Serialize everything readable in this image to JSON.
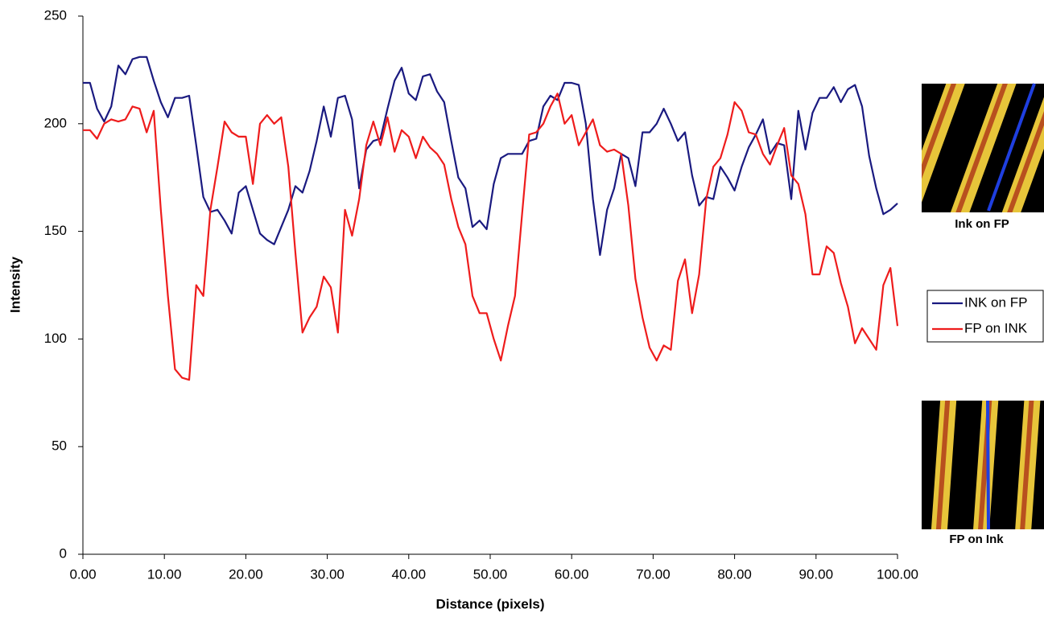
{
  "chart_data": {
    "type": "line",
    "x_label": "Distance (pixels)",
    "y_label": "Intensity",
    "x": [
      0,
      0.87,
      1.74,
      2.61,
      3.48,
      4.35,
      5.22,
      6.09,
      6.96,
      7.83,
      8.7,
      9.57,
      10.43,
      11.3,
      12.17,
      13.04,
      13.91,
      14.78,
      15.65,
      16.52,
      17.39,
      18.26,
      19.13,
      20.0,
      20.87,
      21.74,
      22.61,
      23.48,
      24.35,
      25.22,
      26.09,
      26.96,
      27.83,
      28.7,
      29.57,
      30.43,
      31.3,
      32.17,
      33.04,
      33.91,
      34.78,
      35.65,
      36.52,
      37.39,
      38.26,
      39.13,
      40.0,
      40.87,
      41.74,
      42.61,
      43.48,
      44.35,
      45.22,
      46.09,
      46.96,
      47.83,
      48.7,
      49.57,
      50.43,
      51.3,
      52.17,
      53.04,
      53.91,
      54.78,
      55.65,
      56.52,
      57.39,
      58.26,
      59.13,
      60.0,
      60.87,
      61.74,
      62.61,
      63.48,
      64.35,
      65.22,
      66.09,
      66.96,
      67.83,
      68.7,
      69.57,
      70.43,
      71.3,
      72.17,
      73.04,
      73.91,
      74.78,
      75.65,
      76.52,
      77.39,
      78.26,
      79.13,
      80.0,
      80.87,
      81.74,
      82.61,
      83.48,
      84.35,
      85.22,
      86.09,
      86.96,
      87.83,
      88.7,
      89.57,
      90.43,
      91.3,
      92.17,
      93.04,
      93.91,
      94.78,
      95.65,
      96.52,
      97.39,
      98.26,
      99.13,
      100.0
    ],
    "series": [
      {
        "name": "INK on FP",
        "color": "#1a1a80",
        "values": [
          219,
          219,
          207,
          201,
          208,
          227,
          223,
          230,
          231,
          231,
          220,
          210,
          203,
          212,
          212,
          213,
          190,
          166,
          159,
          160,
          155,
          149,
          168,
          171,
          160,
          149,
          146,
          144,
          152,
          160,
          171,
          168,
          178,
          192,
          208,
          194,
          212,
          213,
          202,
          170,
          188,
          192,
          193,
          207,
          220,
          226,
          214,
          211,
          222,
          223,
          215,
          210,
          192,
          175,
          170,
          152,
          155,
          151,
          172,
          184,
          186,
          186,
          186,
          192,
          193,
          208,
          213,
          211,
          219,
          219,
          218,
          200,
          165,
          139,
          160,
          170,
          186,
          184,
          171,
          196,
          196,
          200,
          207,
          200,
          192,
          196,
          176,
          162,
          166,
          165,
          180,
          175,
          169,
          180,
          189,
          195,
          202,
          186,
          191,
          190,
          165,
          206,
          188,
          205,
          212,
          212,
          217,
          210,
          216,
          218,
          208,
          185,
          170,
          158,
          160,
          163
        ]
      },
      {
        "name": "FP on INK",
        "color": "#ee1c1c",
        "values": [
          197,
          197,
          193,
          200,
          202,
          201,
          202,
          208,
          207,
          196,
          206,
          160,
          120,
          86,
          82,
          81,
          125,
          120,
          160,
          180,
          201,
          196,
          194,
          194,
          172,
          200,
          204,
          200,
          203,
          180,
          140,
          103,
          110,
          115,
          129,
          124,
          103,
          160,
          148,
          165,
          190,
          201,
          190,
          203,
          187,
          197,
          194,
          184,
          194,
          189,
          186,
          181,
          165,
          152,
          144,
          120,
          112,
          112,
          100,
          90,
          106,
          120,
          158,
          195,
          196,
          200,
          208,
          214,
          200,
          204,
          190,
          196,
          202,
          190,
          187,
          188,
          186,
          162,
          128,
          110,
          96,
          90,
          97,
          95,
          127,
          137,
          112,
          130,
          165,
          180,
          184,
          195,
          210,
          206,
          196,
          195,
          186,
          181,
          190,
          198,
          176,
          172,
          158,
          130,
          130,
          143,
          140,
          126,
          115,
          98,
          105,
          100,
          95,
          125,
          133,
          106
        ]
      }
    ],
    "xlim": [
      0,
      100
    ],
    "ylim": [
      0,
      250
    ],
    "xticks": [
      {
        "value": 0,
        "label": "0.00"
      },
      {
        "value": 10,
        "label": "10.00"
      },
      {
        "value": 20,
        "label": "20.00"
      },
      {
        "value": 30,
        "label": "30.00"
      },
      {
        "value": 40,
        "label": "40.00"
      },
      {
        "value": 50,
        "label": "50.00"
      },
      {
        "value": 60,
        "label": "60.00"
      },
      {
        "value": 70,
        "label": "70.00"
      },
      {
        "value": 80,
        "label": "80.00"
      },
      {
        "value": 90,
        "label": "90.00"
      },
      {
        "value": 100,
        "label": "100.00"
      }
    ],
    "yticks": [
      0,
      50,
      100,
      150,
      200,
      250
    ],
    "grid": false,
    "legend": "right"
  },
  "images": [
    {
      "caption": "Ink on FP"
    },
    {
      "caption": "FP on Ink"
    }
  ]
}
